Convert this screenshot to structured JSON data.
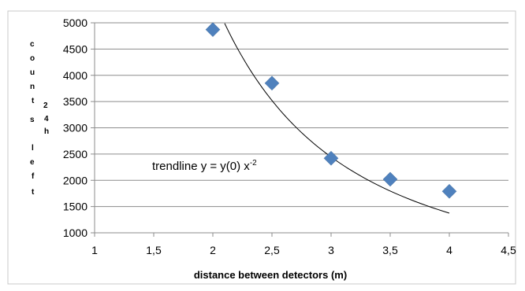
{
  "chart_data": {
    "type": "scatter",
    "xlabel": "distance between detectors (m)",
    "ylabel_parts": [
      "counts",
      "24h",
      "left"
    ],
    "xlim": [
      1,
      4.5
    ],
    "ylim": [
      1000,
      5000
    ],
    "x_ticks": [
      "1",
      "1,5",
      "2",
      "2,5",
      "3",
      "3,5",
      "4",
      "4,5"
    ],
    "y_ticks": [
      "1000",
      "1500",
      "2000",
      "2500",
      "3000",
      "3500",
      "4000",
      "4500",
      "5000"
    ],
    "grid": "horizontal",
    "legend": "none",
    "series": [
      {
        "x": [
          2,
          2.5,
          3,
          3.5,
          4
        ],
        "y": [
          4870,
          3850,
          2420,
          2020,
          1790
        ],
        "marker": "diamond",
        "color": "#4f81bd"
      }
    ],
    "trendline": {
      "label_prefix": "trendline  y = y(0) x",
      "label_exponent": "-2",
      "type": "power",
      "exponent": -2,
      "coefficient": 22000,
      "x_range": [
        2.1,
        4
      ],
      "color": "#000000"
    }
  }
}
